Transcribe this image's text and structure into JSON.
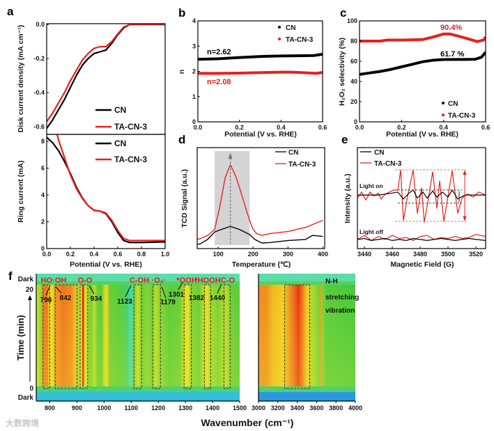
{
  "panel_labels": {
    "a": "a",
    "b": "b",
    "c": "c",
    "d": "d",
    "e": "e",
    "f": "f"
  },
  "colors": {
    "cn": "#000000",
    "ta": "#e8201c",
    "ta_light": "#e06060",
    "gray_box": "#d4d4d4"
  },
  "watermark": "大数跨境",
  "chart_data": [
    {
      "id": "a_disk",
      "type": "line",
      "xlabel": "",
      "ylabel": "Disk current density (mA cm⁻¹)",
      "xlim": [
        0,
        1
      ],
      "ylim": [
        -0.645,
        0.005
      ],
      "xticks": [],
      "yticks": [
        0.0,
        -0.2,
        -0.4,
        -0.6
      ],
      "ytick_labels": [
        "0.0",
        "-0.2",
        "-0.4",
        "-0.6"
      ],
      "legend": [
        "CN",
        "TA-CN-3"
      ],
      "legend_position": "bottom-right",
      "series": [
        {
          "name": "CN",
          "color": "#000000",
          "x": [
            0,
            0.05,
            0.1,
            0.15,
            0.2,
            0.25,
            0.3,
            0.35,
            0.4,
            0.45,
            0.5,
            0.55,
            0.6,
            0.65,
            0.7,
            0.75,
            1.0
          ],
          "y": [
            -0.61,
            -0.56,
            -0.5,
            -0.44,
            -0.37,
            -0.3,
            -0.24,
            -0.2,
            -0.17,
            -0.16,
            -0.15,
            -0.11,
            -0.06,
            -0.02,
            0,
            0,
            0
          ]
        },
        {
          "name": "TA-CN-3",
          "color": "#e8201c",
          "x": [
            0,
            0.05,
            0.1,
            0.15,
            0.2,
            0.25,
            0.3,
            0.35,
            0.4,
            0.45,
            0.5,
            0.55,
            0.6,
            0.65,
            0.7,
            0.75,
            1.0
          ],
          "y": [
            -0.57,
            -0.52,
            -0.46,
            -0.4,
            -0.33,
            -0.27,
            -0.21,
            -0.17,
            -0.14,
            -0.13,
            -0.13,
            -0.1,
            -0.055,
            -0.015,
            0,
            0,
            0
          ]
        }
      ]
    },
    {
      "id": "a_ring",
      "type": "line",
      "xlabel": "Potential (V vs. RHE)",
      "ylabel": "Ring current (mA)",
      "xlim": [
        0,
        1
      ],
      "ylim": [
        0,
        8.52
      ],
      "xticks": [
        0,
        0.2,
        0.4,
        0.6,
        0.8,
        1.0
      ],
      "xtick_labels": [
        "0.0",
        "0.2",
        "0.4",
        "0.6",
        "0.8",
        "1.0"
      ],
      "yticks": [
        0,
        2,
        4,
        6,
        8
      ],
      "ytick_labels": [
        "0",
        "2",
        "4",
        "6",
        "8"
      ],
      "legend": [
        "CN",
        "TA-CN-3"
      ],
      "legend_position": "top-right",
      "series": [
        {
          "name": "CN",
          "color": "#000000",
          "x": [
            0,
            0.05,
            0.1,
            0.15,
            0.2,
            0.25,
            0.3,
            0.35,
            0.4,
            0.45,
            0.5,
            0.55,
            0.6,
            0.65,
            0.7,
            0.8,
            1.0
          ],
          "y": [
            8.3,
            7.9,
            7.3,
            6.5,
            5.6,
            4.6,
            3.8,
            3.2,
            2.85,
            2.8,
            2.6,
            2.0,
            1.2,
            0.6,
            0.45,
            0.45,
            0.5
          ]
        },
        {
          "name": "TA-CN-3",
          "color": "#e8201c",
          "x": [
            0.085,
            0.1,
            0.15,
            0.2,
            0.25,
            0.3,
            0.35,
            0.4,
            0.45,
            0.5,
            0.55,
            0.6,
            0.65,
            0.7,
            0.8,
            1.0
          ],
          "y": [
            8.6,
            8.1,
            6.8,
            5.5,
            4.5,
            3.75,
            3.2,
            2.85,
            2.8,
            2.65,
            2.1,
            1.35,
            0.75,
            0.6,
            0.6,
            0.6
          ]
        }
      ]
    },
    {
      "id": "b",
      "type": "scatter",
      "xlabel": "Potential (V vs. RHE)",
      "ylabel": "n",
      "xlim": [
        0,
        0.6
      ],
      "ylim": [
        0,
        4
      ],
      "xticks": [
        0,
        0.2,
        0.4,
        0.6
      ],
      "xtick_labels": [
        "0.0",
        "0.2",
        "0.4",
        "0.6"
      ],
      "yticks": [
        0,
        1,
        2,
        3,
        4
      ],
      "ytick_labels": [
        "0",
        "1",
        "2",
        "3",
        "4"
      ],
      "legend": [
        "CN",
        "TA-CN-3"
      ],
      "legend_position": "top-right",
      "annotations": [
        "n=2.62",
        "n=2.08"
      ],
      "series": [
        {
          "name": "CN",
          "color": "#000000",
          "x": [
            0,
            0.1,
            0.2,
            0.3,
            0.4,
            0.5,
            0.56,
            0.6
          ],
          "y": [
            2.48,
            2.5,
            2.55,
            2.59,
            2.61,
            2.62,
            2.63,
            2.68
          ]
        },
        {
          "name": "TA-CN-3",
          "color": "#e8201c",
          "x": [
            0,
            0.1,
            0.2,
            0.3,
            0.4,
            0.45,
            0.5,
            0.57,
            0.6
          ],
          "y": [
            1.92,
            1.92,
            1.93,
            1.95,
            1.97,
            1.97,
            1.95,
            1.92,
            1.96
          ]
        }
      ]
    },
    {
      "id": "c",
      "type": "scatter",
      "xlabel": "Potential (V vs. RHE)",
      "ylabel": "H₂O₂ selectivity (%)",
      "xlim": [
        0,
        0.6
      ],
      "ylim": [
        0,
        100
      ],
      "xticks": [
        0,
        0.2,
        0.4,
        0.6
      ],
      "xtick_labels": [
        "0.0",
        "0.2",
        "0.4",
        "0.6"
      ],
      "yticks": [
        0,
        20,
        40,
        60,
        80,
        100
      ],
      "ytick_labels": [
        "0",
        "20",
        "40",
        "60",
        "80",
        "100"
      ],
      "legend": [
        "CN",
        "TA-CN-3"
      ],
      "legend_position": "bottom-right",
      "annotations": [
        "90.4%",
        "61.7 %"
      ],
      "series": [
        {
          "name": "CN",
          "color": "#000000",
          "x": [
            0,
            0.05,
            0.1,
            0.15,
            0.2,
            0.25,
            0.3,
            0.35,
            0.4,
            0.45,
            0.5,
            0.55,
            0.58,
            0.6
          ],
          "y": [
            47,
            48.5,
            50,
            52,
            54.5,
            57,
            59.5,
            61,
            61.7,
            61.8,
            61.8,
            62,
            64,
            69
          ]
        },
        {
          "name": "TA-CN-3",
          "color": "#e8201c",
          "x": [
            0,
            0.1,
            0.13,
            0.2,
            0.3,
            0.35,
            0.4,
            0.43,
            0.47,
            0.52,
            0.56,
            0.59,
            0.6
          ],
          "y": [
            80,
            80,
            81,
            81,
            81.5,
            84,
            87,
            87,
            85,
            82,
            79.5,
            81,
            84
          ]
        }
      ]
    },
    {
      "id": "d",
      "type": "line",
      "xlabel": "Temperature (℃)",
      "ylabel": "TCD Signal (a.u.)",
      "xlim": [
        40,
        405
      ],
      "ylim": [
        0,
        10
      ],
      "xticks": [
        100,
        200,
        300,
        400
      ],
      "xtick_labels": [
        "100",
        "200",
        "300",
        "400"
      ],
      "yticks": [],
      "legend": [
        "CN",
        "TA-CN-3"
      ],
      "legend_position": "top-right",
      "highlight_range": [
        90,
        190
      ],
      "peak_x": 135,
      "series": [
        {
          "name": "CN",
          "color": "#000000",
          "x": [
            40,
            50,
            70,
            90,
            110,
            135,
            160,
            190,
            205,
            225,
            250,
            300,
            350,
            370,
            400
          ],
          "y": [
            0.4,
            0.5,
            0.9,
            1.65,
            1.9,
            2.2,
            1.9,
            1.4,
            0.9,
            0.55,
            0.6,
            0.8,
            0.9,
            1.3,
            1.2
          ]
        },
        {
          "name": "TA-CN-3",
          "color": "#e8201c",
          "x": [
            40,
            50,
            70,
            90,
            105,
            120,
            135,
            150,
            165,
            180,
            190,
            200,
            210,
            225,
            250,
            300,
            350,
            400
          ],
          "y": [
            0.9,
            1.0,
            1.3,
            1.9,
            4.2,
            7.0,
            8.3,
            7.2,
            5.6,
            3.9,
            2.8,
            1.9,
            1.5,
            1.3,
            1.5,
            1.7,
            2.1,
            2.8
          ]
        }
      ]
    },
    {
      "id": "e",
      "type": "line",
      "xlabel": "Magnetic Field (G)",
      "ylabel": "Intensity (a.u.)",
      "xlim": [
        3435,
        3527
      ],
      "ylim": [
        0,
        10
      ],
      "xticks": [
        3440,
        3460,
        3480,
        3500,
        3520
      ],
      "xtick_labels": [
        "3440",
        "3460",
        "3480",
        "3500",
        "3520"
      ],
      "yticks": [],
      "legend": [
        "CN",
        "TA-CN-3"
      ],
      "legend_position": "top-left",
      "annotations": [
        "Light on",
        "Light off"
      ],
      "series": [
        {
          "name": "TA-CN-3 light on",
          "color": "#e8201c",
          "x": [
            3435,
            3438,
            3441,
            3444,
            3447,
            3450,
            3452,
            3455,
            3458,
            3461,
            3464,
            3466,
            3468,
            3471,
            3475,
            3478,
            3481,
            3483,
            3486,
            3489,
            3492,
            3494,
            3497,
            3500,
            3503,
            3507,
            3510,
            3514,
            3518,
            3522,
            3527
          ],
          "y": [
            5.0,
            5.6,
            4.8,
            5.6,
            5.2,
            5.5,
            4.9,
            5.4,
            5.6,
            5.8,
            5.8,
            7.8,
            2.8,
            5.2,
            7.8,
            3.5,
            6.0,
            2.6,
            5.0,
            7.6,
            4.0,
            6.7,
            2.7,
            5.2,
            7.7,
            3.5,
            5.0,
            5.4,
            5.1,
            5.6,
            5.3
          ]
        },
        {
          "name": "CN light on",
          "color": "#000000",
          "x": [
            3435,
            3450,
            3460,
            3464,
            3468,
            3472,
            3475,
            3478,
            3482,
            3485,
            3489,
            3492,
            3496,
            3500,
            3503,
            3507,
            3512,
            3527
          ],
          "y": [
            5.3,
            5.3,
            5.5,
            5.6,
            4.9,
            5.5,
            5.8,
            5.0,
            5.6,
            5.0,
            5.7,
            5.1,
            5.6,
            5.1,
            5.8,
            4.9,
            5.3,
            5.3
          ]
        },
        {
          "name": "TA-CN-3 light off",
          "color": "#e8201c",
          "x": [
            3435,
            3440,
            3445,
            3450,
            3455,
            3460,
            3465,
            3470,
            3475,
            3480,
            3485,
            3490,
            3495,
            3500,
            3505,
            3510,
            3515,
            3520,
            3527
          ],
          "y": [
            0.9,
            1.3,
            0.8,
            1.2,
            0.9,
            1.3,
            1.0,
            1.1,
            0.8,
            1.2,
            1.3,
            0.9,
            1.1,
            1.0,
            1.2,
            1.0,
            1.1,
            1.4,
            1.2
          ]
        },
        {
          "name": "CN light off",
          "color": "#000000",
          "x": [
            3435,
            3440,
            3445,
            3450,
            3455,
            3460,
            3465,
            3470,
            3475,
            3480,
            3485,
            3490,
            3495,
            3500,
            3505,
            3510,
            3515,
            3520,
            3527
          ],
          "y": [
            0.9,
            1.0,
            0.8,
            0.9,
            1.0,
            0.8,
            0.9,
            0.8,
            1.0,
            0.9,
            0.8,
            0.9,
            1.0,
            0.9,
            0.8,
            0.9,
            1.0,
            0.9,
            0.8
          ]
        }
      ]
    },
    {
      "id": "f_left",
      "type": "heatmap",
      "xlabel": "Wavenumber (cm⁻¹)",
      "ylabel": "Time (min)",
      "xlim": [
        750,
        1500
      ],
      "xticks": [
        800,
        900,
        1000,
        1100,
        1200,
        1300,
        1400,
        1500
      ],
      "xtick_labels": [
        "800",
        "900",
        "1000",
        "1100",
        "1200",
        "1300",
        "1400",
        "1500"
      ],
      "ytick_labels": [
        "Dark",
        "20",
        "0",
        "Dark"
      ],
      "intensity_profile": [
        [
          750,
          0.45
        ],
        [
          760,
          0.3
        ],
        [
          770,
          0.2
        ],
        [
          775,
          0.75
        ],
        [
          790,
          0.8
        ],
        [
          800,
          0.5
        ],
        [
          810,
          0.45
        ],
        [
          820,
          0.7
        ],
        [
          850,
          0.78
        ],
        [
          880,
          0.72
        ],
        [
          900,
          0.55
        ],
        [
          905,
          0.2
        ],
        [
          912,
          0.4
        ],
        [
          918,
          0.5
        ],
        [
          920,
          1
        ],
        [
          925,
          1
        ],
        [
          928,
          0.5
        ],
        [
          940,
          0.3
        ],
        [
          950,
          0.1
        ],
        [
          965,
          0.35
        ],
        [
          975,
          0.1
        ],
        [
          990,
          0.05
        ],
        [
          1005,
          0.45
        ],
        [
          1012,
          0.55
        ],
        [
          1020,
          0.1
        ],
        [
          1060,
          0.05
        ],
        [
          1085,
          -0.1
        ],
        [
          1100,
          -0.3
        ],
        [
          1110,
          0.1
        ],
        [
          1125,
          0.4
        ],
        [
          1140,
          0.1
        ],
        [
          1160,
          0.2
        ],
        [
          1175,
          0.1
        ],
        [
          1190,
          0.35
        ],
        [
          1205,
          0.2
        ],
        [
          1240,
          0.05
        ],
        [
          1280,
          0.1
        ],
        [
          1300,
          0.45
        ],
        [
          1310,
          0.5
        ],
        [
          1320,
          0.2
        ],
        [
          1350,
          0.1
        ],
        [
          1380,
          0.5
        ],
        [
          1390,
          0.3
        ],
        [
          1420,
          0.15
        ],
        [
          1450,
          0.35
        ],
        [
          1470,
          0.1
        ],
        [
          1500,
          0.05
        ]
      ],
      "boxes": [
        [
          775,
          800
        ],
        [
          820,
          900
        ],
        [
          912,
          940
        ],
        [
          1110,
          1138
        ],
        [
          1180,
          1208
        ],
        [
          1295,
          1322
        ],
        [
          1370,
          1393
        ],
        [
          1442,
          1465
        ]
      ],
      "species": [
        "HO·OH",
        "O-O",
        "C-OH",
        "·O₂·",
        "*OOH",
        "*HOOH",
        "C-O"
      ],
      "peaks": [
        "790",
        "842",
        "934",
        "1123",
        "1179",
        "1301",
        "1382",
        "1440"
      ]
    },
    {
      "id": "f_right",
      "type": "heatmap",
      "xlim": [
        3000,
        4000
      ],
      "xticks": [
        3000,
        3200,
        3400,
        3600,
        3800,
        4000
      ],
      "xtick_labels": [
        "3000",
        "3200",
        "3400",
        "3600",
        "3800",
        "4000"
      ],
      "intensity_profile": [
        [
          3000,
          0.72
        ],
        [
          3080,
          0.72
        ],
        [
          3150,
          0.6
        ],
        [
          3250,
          0.55
        ],
        [
          3300,
          0.65
        ],
        [
          3380,
          0.85
        ],
        [
          3410,
          0.95
        ],
        [
          3450,
          0.8
        ],
        [
          3500,
          0.55
        ],
        [
          3560,
          0.3
        ],
        [
          3620,
          0.15
        ],
        [
          3640,
          0.7
        ],
        [
          3650,
          0.2
        ],
        [
          3700,
          0.05
        ],
        [
          4000,
          0
        ]
      ],
      "boxes": [
        [
          3270,
          3530
        ]
      ],
      "annotation_lines": [
        "N-H",
        "stretching",
        "vibration"
      ]
    }
  ]
}
